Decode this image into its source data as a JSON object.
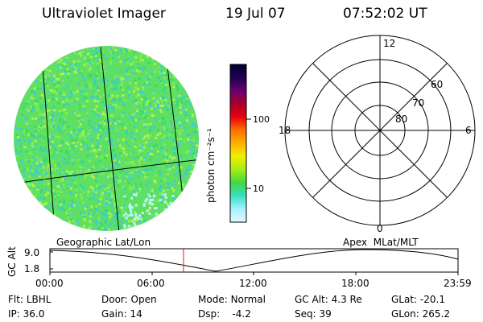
{
  "header": {
    "instrument": "Ultraviolet Imager",
    "date": "19 Jul 07",
    "time": "07:52:02 UT"
  },
  "colorbar": {
    "unit_label": "photon cm⁻²s⁻¹",
    "ticks": [
      {
        "label": "100",
        "value": 100
      },
      {
        "label": "10",
        "value": 10
      }
    ],
    "scale": "log",
    "colors": [
      "#000030",
      "#200050",
      "#6a0070",
      "#a8002a",
      "#e80010",
      "#ff7000",
      "#ffb000",
      "#f0f000",
      "#a8ea18",
      "#40d840",
      "#38e0c0",
      "#a8f0ff",
      "#e0f8ff"
    ]
  },
  "image_disk": {
    "base_color": "#60e060",
    "noise_colors": [
      "#50d8a0",
      "#40c8e0",
      "#80ec50",
      "#b0f050",
      "#38d878"
    ]
  },
  "polar_plot": {
    "hour_labels": {
      "top": "12",
      "left": "18",
      "right": "6",
      "bottom": "0"
    },
    "lat_labels": [
      "60",
      "70",
      "80"
    ]
  },
  "altitude_panel": {
    "left_title": "Geographic Lat/Lon",
    "right_title": "Apex  MLat/MLT",
    "y_axis_label": "GC Alt",
    "y_ticks": [
      "9.0",
      "1.8"
    ],
    "x_ticks": [
      "00:00",
      "06:00",
      "12:00",
      "18:00",
      "23:59"
    ],
    "marker_color": "#cc2020"
  },
  "status": {
    "rows": [
      [
        {
          "label": "Flt:",
          "value": "LBHL"
        },
        {
          "label": "Door:",
          "value": "Open"
        },
        {
          "label": "Mode:",
          "value": "Normal"
        },
        {
          "label": "GC Alt:",
          "value": "4.3 Re"
        },
        {
          "label": "GLat:",
          "value": "-20.1"
        }
      ],
      [
        {
          "label": "IP:",
          "value": "36.0"
        },
        {
          "label": "Gain:",
          "value": "14"
        },
        {
          "label": "Dsp:",
          "value": "   -4.2"
        },
        {
          "label": "Seq:",
          "value": "39"
        },
        {
          "label": "GLon:",
          "value": "265.2"
        }
      ]
    ]
  }
}
